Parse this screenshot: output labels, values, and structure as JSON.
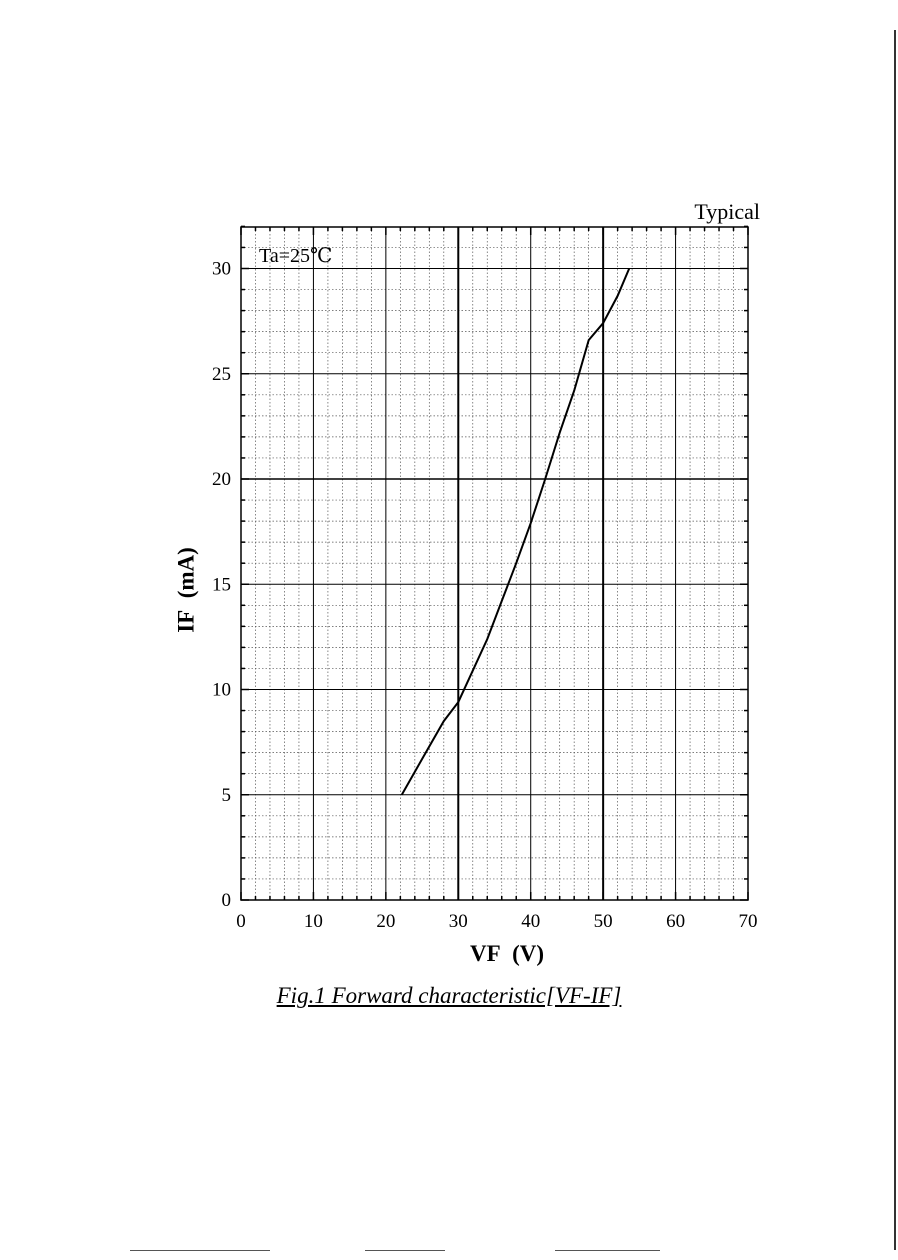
{
  "chart_data": {
    "type": "line",
    "title": "",
    "corner_label": "Typical",
    "annotation": "Ta=25℃",
    "xlabel": "VF  (V)",
    "ylabel": "IF  (mA)",
    "xlim": [
      0,
      70
    ],
    "ylim": [
      0,
      32
    ],
    "x_ticks": [
      "0",
      "10",
      "20",
      "30",
      "40",
      "50",
      "60",
      "70"
    ],
    "y_ticks": [
      "0",
      "5",
      "10",
      "15",
      "20",
      "25",
      "30"
    ],
    "grid": true,
    "series": [
      {
        "x": [
          22.2,
          25,
          28,
          30,
          32,
          34,
          36,
          38,
          40,
          42,
          44,
          46,
          48,
          50,
          52,
          53.6
        ],
        "y": [
          5.0,
          6.7,
          8.5,
          9.4,
          10.9,
          12.4,
          14.2,
          16.0,
          17.9,
          20.0,
          22.2,
          24.2,
          26.6,
          27.4,
          28.7,
          30.0
        ]
      }
    ]
  },
  "caption": "Fig.1  Forward characteristic[VF-IF]"
}
